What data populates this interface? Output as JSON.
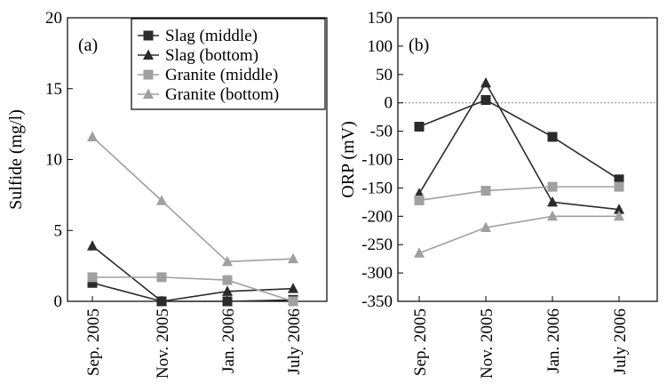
{
  "colors": {
    "dark": "#2b2b2b",
    "light": "#a0a0a0",
    "axis": "#000000",
    "zero_line": "#8a8a8a"
  },
  "chart_data": [
    {
      "type": "line",
      "panel_label": "(a)",
      "ylabel": "Sulfide (mg/l)",
      "xlabel": "",
      "categories": [
        "Sep. 2005",
        "Nov. 2005",
        "Jan. 2006",
        "July 2006"
      ],
      "ylim": [
        0,
        20
      ],
      "yticks": [
        0,
        5,
        10,
        15,
        20
      ],
      "grid": false,
      "legend_position": "top-right",
      "series": [
        {
          "name": "Slag (middle)",
          "marker": "square",
          "color": "dark",
          "values": [
            1.3,
            0,
            0,
            0.1
          ]
        },
        {
          "name": "Slag (bottom)",
          "marker": "triangle",
          "color": "dark",
          "values": [
            3.9,
            0,
            0.7,
            0.9
          ]
        },
        {
          "name": "Granite (middle)",
          "marker": "square",
          "color": "light",
          "values": [
            1.7,
            1.7,
            1.5,
            0
          ]
        },
        {
          "name": "Granite (bottom)",
          "marker": "triangle",
          "color": "light",
          "values": [
            11.6,
            7.1,
            2.8,
            3.0
          ]
        }
      ]
    },
    {
      "type": "line",
      "panel_label": "(b)",
      "ylabel": "ORP (mV)",
      "xlabel": "",
      "categories": [
        "Sep. 2005",
        "Nov. 2005",
        "Jan. 2006",
        "July 2006"
      ],
      "ylim": [
        -350,
        150
      ],
      "yticks": [
        -350,
        -300,
        -250,
        -200,
        -150,
        -100,
        -50,
        0,
        50,
        100,
        150
      ],
      "grid": false,
      "zero_line": true,
      "series": [
        {
          "name": "Slag (middle)",
          "marker": "square",
          "color": "dark",
          "values": [
            -42,
            5,
            -60,
            -135
          ]
        },
        {
          "name": "Slag (bottom)",
          "marker": "triangle",
          "color": "dark",
          "values": [
            -160,
            35,
            -175,
            -188
          ]
        },
        {
          "name": "Granite (middle)",
          "marker": "square",
          "color": "light",
          "values": [
            -172,
            -155,
            -148,
            -148
          ]
        },
        {
          "name": "Granite (bottom)",
          "marker": "triangle",
          "color": "light",
          "values": [
            -265,
            -220,
            -200,
            -200
          ]
        }
      ]
    }
  ]
}
